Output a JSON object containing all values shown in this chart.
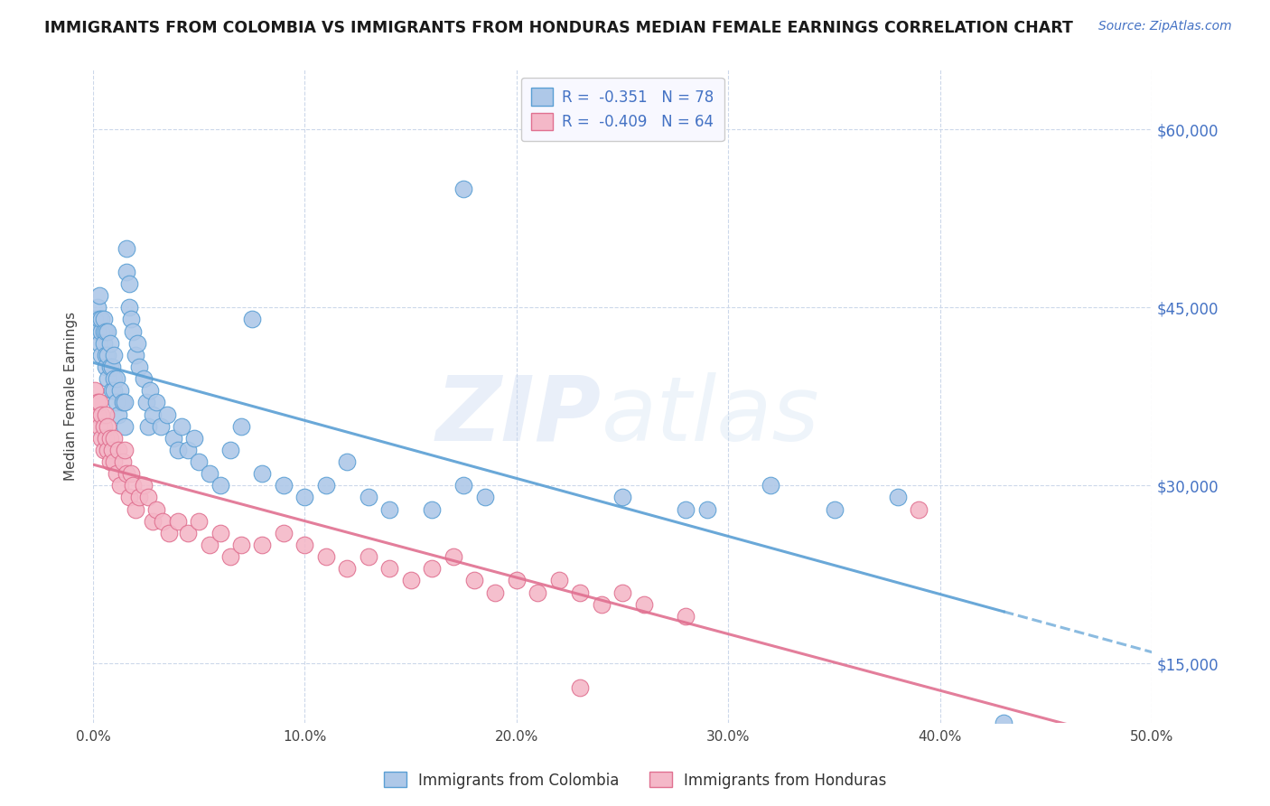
{
  "title": "IMMIGRANTS FROM COLOMBIA VS IMMIGRANTS FROM HONDURAS MEDIAN FEMALE EARNINGS CORRELATION CHART",
  "source": "Source: ZipAtlas.com",
  "ylabel": "Median Female Earnings",
  "xlim": [
    0.0,
    0.5
  ],
  "ylim": [
    10000,
    65000
  ],
  "xtick_vals": [
    0.0,
    0.1,
    0.2,
    0.3,
    0.4,
    0.5
  ],
  "xtick_labels": [
    "0.0%",
    "10.0%",
    "20.0%",
    "30.0%",
    "40.0%",
    "50.0%"
  ],
  "ytick_vals": [
    15000,
    30000,
    45000,
    60000
  ],
  "ytick_labels": [
    "$15,000",
    "$30,000",
    "$45,000",
    "$60,000"
  ],
  "colombia_color": "#aec8e8",
  "colombia_edge": "#5a9fd4",
  "honduras_color": "#f4b8c8",
  "honduras_edge": "#e07090",
  "line_colombia_color": "#5a9fd4",
  "line_honduras_color": "#e07090",
  "R_colombia": -0.351,
  "N_colombia": 78,
  "R_honduras": -0.409,
  "N_honduras": 64,
  "legend_label_colombia": "Immigrants from Colombia",
  "legend_label_honduras": "Immigrants from Honduras",
  "background_color": "#ffffff",
  "grid_color": "#ccd8ea",
  "colombia_x": [
    0.001,
    0.002,
    0.002,
    0.003,
    0.003,
    0.003,
    0.004,
    0.004,
    0.004,
    0.005,
    0.005,
    0.005,
    0.006,
    0.006,
    0.006,
    0.007,
    0.007,
    0.007,
    0.008,
    0.008,
    0.009,
    0.009,
    0.01,
    0.01,
    0.01,
    0.011,
    0.011,
    0.012,
    0.013,
    0.014,
    0.015,
    0.015,
    0.016,
    0.016,
    0.017,
    0.017,
    0.018,
    0.019,
    0.02,
    0.021,
    0.022,
    0.024,
    0.025,
    0.026,
    0.027,
    0.028,
    0.03,
    0.032,
    0.035,
    0.038,
    0.04,
    0.042,
    0.045,
    0.048,
    0.05,
    0.055,
    0.06,
    0.065,
    0.07,
    0.075,
    0.08,
    0.09,
    0.1,
    0.11,
    0.12,
    0.13,
    0.14,
    0.16,
    0.175,
    0.185,
    0.25,
    0.29,
    0.32,
    0.35,
    0.38,
    0.175,
    0.28,
    0.43
  ],
  "colombia_y": [
    44000,
    43000,
    45000,
    44000,
    42000,
    46000,
    43000,
    41000,
    44000,
    43000,
    42000,
    44000,
    41000,
    43000,
    40000,
    39000,
    41000,
    43000,
    40000,
    42000,
    38000,
    40000,
    39000,
    41000,
    38000,
    37000,
    39000,
    36000,
    38000,
    37000,
    35000,
    37000,
    50000,
    48000,
    47000,
    45000,
    44000,
    43000,
    41000,
    42000,
    40000,
    39000,
    37000,
    35000,
    38000,
    36000,
    37000,
    35000,
    36000,
    34000,
    33000,
    35000,
    33000,
    34000,
    32000,
    31000,
    30000,
    33000,
    35000,
    44000,
    31000,
    30000,
    29000,
    30000,
    32000,
    29000,
    28000,
    28000,
    30000,
    29000,
    29000,
    28000,
    30000,
    28000,
    29000,
    55000,
    28000,
    10000
  ],
  "honduras_x": [
    0.001,
    0.002,
    0.002,
    0.003,
    0.003,
    0.004,
    0.004,
    0.005,
    0.005,
    0.006,
    0.006,
    0.007,
    0.007,
    0.008,
    0.008,
    0.009,
    0.01,
    0.01,
    0.011,
    0.012,
    0.013,
    0.014,
    0.015,
    0.016,
    0.017,
    0.018,
    0.019,
    0.02,
    0.022,
    0.024,
    0.026,
    0.028,
    0.03,
    0.033,
    0.036,
    0.04,
    0.045,
    0.05,
    0.055,
    0.06,
    0.065,
    0.07,
    0.08,
    0.09,
    0.1,
    0.11,
    0.12,
    0.13,
    0.14,
    0.15,
    0.16,
    0.17,
    0.18,
    0.19,
    0.2,
    0.21,
    0.22,
    0.23,
    0.24,
    0.25,
    0.26,
    0.28,
    0.39,
    0.23
  ],
  "honduras_y": [
    38000,
    36000,
    37000,
    35000,
    37000,
    36000,
    34000,
    35000,
    33000,
    36000,
    34000,
    35000,
    33000,
    32000,
    34000,
    33000,
    32000,
    34000,
    31000,
    33000,
    30000,
    32000,
    33000,
    31000,
    29000,
    31000,
    30000,
    28000,
    29000,
    30000,
    29000,
    27000,
    28000,
    27000,
    26000,
    27000,
    26000,
    27000,
    25000,
    26000,
    24000,
    25000,
    25000,
    26000,
    25000,
    24000,
    23000,
    24000,
    23000,
    22000,
    23000,
    24000,
    22000,
    21000,
    22000,
    21000,
    22000,
    21000,
    20000,
    21000,
    20000,
    19000,
    28000,
    13000
  ]
}
